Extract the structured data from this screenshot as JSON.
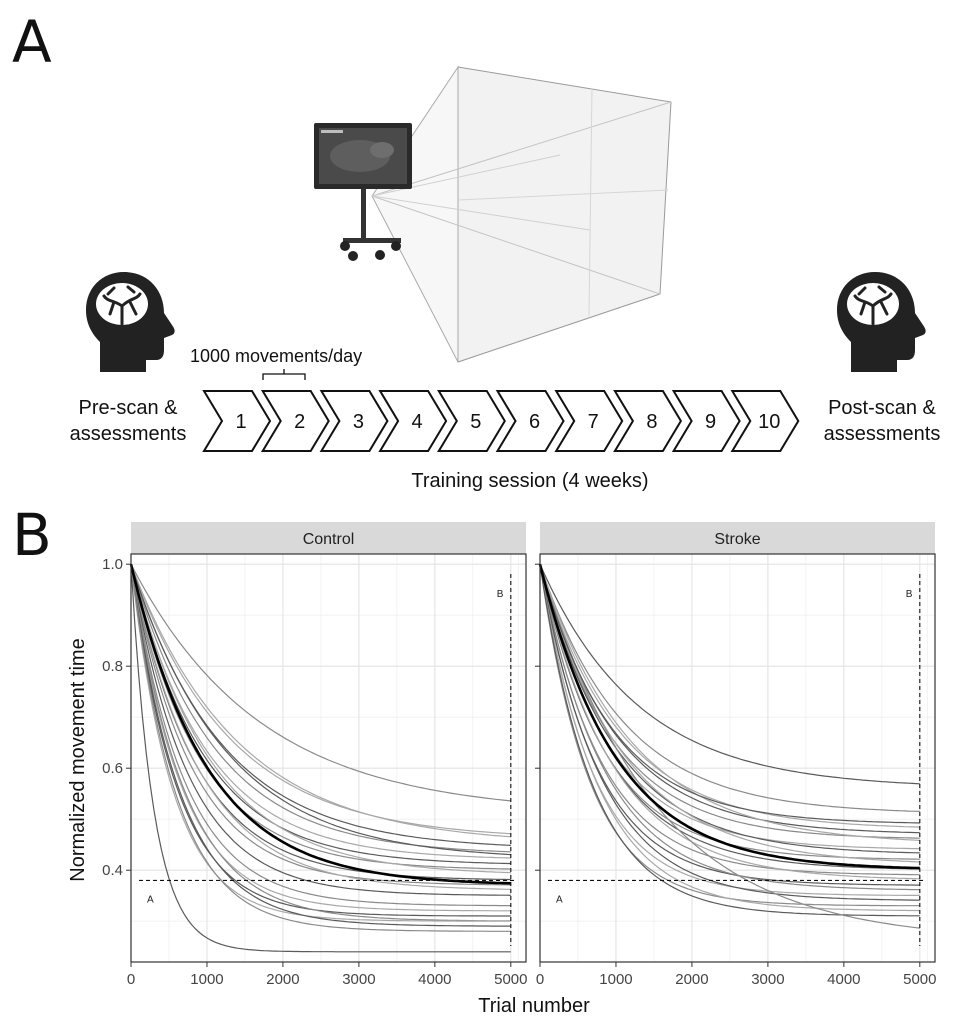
{
  "panel_a": {
    "letter": "A",
    "movements_label": "1000 movements/day",
    "pre_label_line1": "Pre-scan &",
    "pre_label_line2": "assessments",
    "post_label_line1": "Post-scan &",
    "post_label_line2": "assessments",
    "sessions": [
      "1",
      "2",
      "3",
      "4",
      "5",
      "6",
      "7",
      "8",
      "9",
      "10"
    ],
    "training_label": "Training session (4 weeks)"
  },
  "panel_b": {
    "letter": "B"
  },
  "chart_data": [
    {
      "type": "line",
      "facet": "Control",
      "xlabel": "Trial number",
      "ylabel": "Normalized movement time",
      "xlim": [
        0,
        5200
      ],
      "ylim": [
        0.22,
        1.02
      ],
      "x_ticks": [
        "0",
        "1000",
        "2000",
        "3000",
        "4000",
        "5000"
      ],
      "y_ticks": [
        "0.4",
        "0.6",
        "0.8",
        "1.0"
      ],
      "grid": true,
      "mean_curve": {
        "a": 0.37,
        "tau": 1000
      },
      "individual_curves": [
        {
          "a": 0.24,
          "tau": 300
        },
        {
          "a": 0.51,
          "tau": 1700
        },
        {
          "a": 0.46,
          "tau": 1300
        },
        {
          "a": 0.44,
          "tau": 1200
        },
        {
          "a": 0.43,
          "tau": 1100
        },
        {
          "a": 0.42,
          "tau": 1000
        },
        {
          "a": 0.41,
          "tau": 950
        },
        {
          "a": 0.4,
          "tau": 900
        },
        {
          "a": 0.39,
          "tau": 1050
        },
        {
          "a": 0.38,
          "tau": 850
        },
        {
          "a": 0.37,
          "tau": 800
        },
        {
          "a": 0.36,
          "tau": 900
        },
        {
          "a": 0.35,
          "tau": 750
        },
        {
          "a": 0.33,
          "tau": 700
        },
        {
          "a": 0.32,
          "tau": 650
        },
        {
          "a": 0.31,
          "tau": 600
        },
        {
          "a": 0.3,
          "tau": 700
        },
        {
          "a": 0.3,
          "tau": 550
        },
        {
          "a": 0.29,
          "tau": 650
        },
        {
          "a": 0.28,
          "tau": 600
        },
        {
          "a": 0.45,
          "tau": 1400
        },
        {
          "a": 0.42,
          "tau": 1250
        }
      ],
      "threshold": {
        "y": 0.38,
        "label": "A"
      },
      "cutoff": {
        "x": 5000,
        "label": "B"
      }
    },
    {
      "type": "line",
      "facet": "Stroke",
      "xlabel": "Trial number",
      "ylabel": "Normalized movement time",
      "xlim": [
        0,
        5200
      ],
      "ylim": [
        0.22,
        1.02
      ],
      "x_ticks": [
        "0",
        "1000",
        "2000",
        "3000",
        "4000",
        "5000"
      ],
      "y_ticks": [
        "0.4",
        "0.6",
        "0.8",
        "1.0"
      ],
      "grid": true,
      "mean_curve": {
        "a": 0.4,
        "tau": 1000
      },
      "individual_curves": [
        {
          "a": 0.56,
          "tau": 1300
        },
        {
          "a": 0.51,
          "tau": 1100
        },
        {
          "a": 0.48,
          "tau": 1050
        },
        {
          "a": 0.47,
          "tau": 1000
        },
        {
          "a": 0.46,
          "tau": 950
        },
        {
          "a": 0.44,
          "tau": 900
        },
        {
          "a": 0.43,
          "tau": 1000
        },
        {
          "a": 0.42,
          "tau": 850
        },
        {
          "a": 0.41,
          "tau": 1100
        },
        {
          "a": 0.4,
          "tau": 900
        },
        {
          "a": 0.39,
          "tau": 800
        },
        {
          "a": 0.38,
          "tau": 950
        },
        {
          "a": 0.37,
          "tau": 750
        },
        {
          "a": 0.36,
          "tau": 850
        },
        {
          "a": 0.35,
          "tau": 700
        },
        {
          "a": 0.34,
          "tau": 800
        },
        {
          "a": 0.33,
          "tau": 650
        },
        {
          "a": 0.32,
          "tau": 750
        },
        {
          "a": 0.31,
          "tau": 700
        },
        {
          "a": 0.26,
          "tau": 1500
        },
        {
          "a": 0.45,
          "tau": 1200
        },
        {
          "a": 0.49,
          "tau": 950
        }
      ],
      "threshold": {
        "y": 0.38,
        "label": "A"
      },
      "cutoff": {
        "x": 5000,
        "label": "B"
      }
    }
  ]
}
